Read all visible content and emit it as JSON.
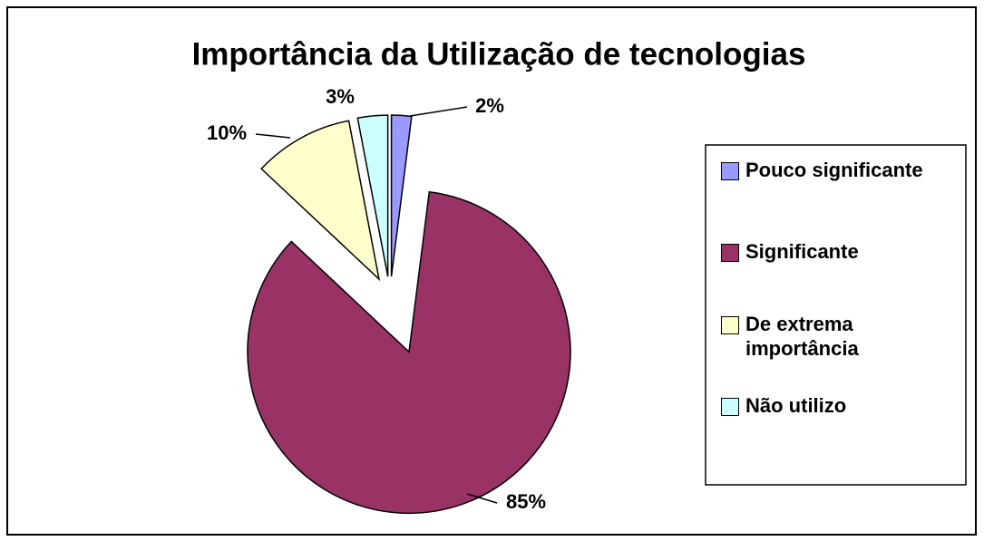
{
  "chart_data": {
    "type": "pie",
    "title": "Importância da Utilização de tecnologias",
    "categories": [
      "Pouco significante",
      "Significante",
      "De extrema importância",
      "Não utilizo"
    ],
    "values": [
      2,
      85,
      10,
      3
    ],
    "value_labels": [
      "2%",
      "85%",
      "10%",
      "3%"
    ],
    "colors": [
      "#9999ff",
      "#993366",
      "#ffffcc",
      "#ccffff"
    ],
    "legend": "right"
  }
}
